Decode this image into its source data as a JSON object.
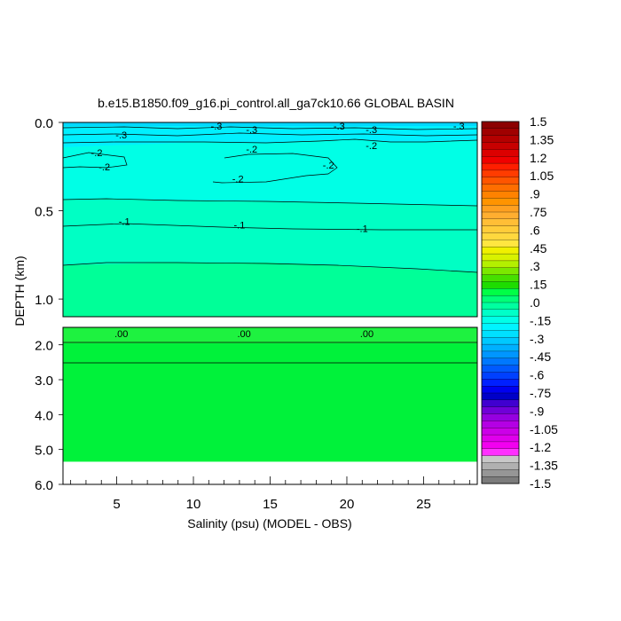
{
  "chart_data": {
    "type": "heatmap",
    "title": "b.e15.B1850.f09_g16.pi_control.all_ga7ck10.66 GLOBAL BASIN",
    "xlabel": "Salinity (psu) (MODEL - OBS)",
    "ylabel": "DEPTH (km)",
    "x_range": [
      1.5,
      28.5
    ],
    "x_ticks": [
      5,
      10,
      15,
      20,
      25
    ],
    "x_tick_labels": [
      "5",
      "10",
      "15",
      "20",
      "25"
    ],
    "upper_panel": {
      "depth_range_km": [
        0.0,
        1.1
      ],
      "y_ticks": [
        0.0,
        0.5,
        1.0
      ],
      "y_tick_labels": [
        "0.0",
        "0.5",
        "1.0"
      ]
    },
    "lower_panel": {
      "depth_range_km": [
        1.5,
        6.0
      ],
      "y_ticks": [
        2.0,
        3.0,
        4.0,
        5.0,
        6.0
      ],
      "y_tick_labels": [
        "2.0",
        "3.0",
        "4.0",
        "5.0",
        "6.0"
      ],
      "data_bottom_km": 5.35
    },
    "contour_labels": [
      {
        "text": "-.3",
        "x": 11.5,
        "depth": 0.02
      },
      {
        "text": "-.3",
        "x": 13.8,
        "depth": 0.04
      },
      {
        "text": "-.3",
        "x": 19.5,
        "depth": 0.02
      },
      {
        "text": "-.3",
        "x": 21.6,
        "depth": 0.04
      },
      {
        "text": "-.3",
        "x": 27.3,
        "depth": 0.02
      },
      {
        "text": "-.3",
        "x": 5.3,
        "depth": 0.07
      },
      {
        "text": "-.2",
        "x": 21.6,
        "depth": 0.13
      },
      {
        "text": "-.2",
        "x": 13.8,
        "depth": 0.15
      },
      {
        "text": "-.2",
        "x": 3.7,
        "depth": 0.17
      },
      {
        "text": "-.2",
        "x": 4.2,
        "depth": 0.25
      },
      {
        "text": "-.2",
        "x": 18.8,
        "depth": 0.24
      },
      {
        "text": "-.2",
        "x": 12.9,
        "depth": 0.32
      },
      {
        "text": "-.1",
        "x": 5.5,
        "depth": 0.56
      },
      {
        "text": "-.1",
        "x": 13.0,
        "depth": 0.58
      },
      {
        "text": "-.1",
        "x": 21.0,
        "depth": 0.6
      },
      {
        "text": ".00",
        "x": 5.3,
        "depth": 1.68
      },
      {
        "text": ".00",
        "x": 13.3,
        "depth": 1.68
      },
      {
        "text": ".00",
        "x": 21.3,
        "depth": 1.68
      }
    ],
    "colorbar": {
      "labels": [
        "1.5",
        "1.35",
        "1.2",
        "1.05",
        ".9",
        ".75",
        ".6",
        ".45",
        ".3",
        ".15",
        ".0",
        "-.15",
        "-.3",
        "-.45",
        "-.6",
        "-.75",
        "-.9",
        "-1.05",
        "-1.2",
        "-1.35",
        "-1.5"
      ],
      "colors": [
        "#8c0000",
        "#a00000",
        "#b40000",
        "#c80000",
        "#dc0000",
        "#f00000",
        "#ff1e00",
        "#ff3c00",
        "#ff5500",
        "#ff6e00",
        "#ff8200",
        "#ff9400",
        "#ffa020",
        "#ffae30",
        "#ffbe36",
        "#ffcc3a",
        "#ffd83e",
        "#ffe640",
        "#f0f000",
        "#d8f200",
        "#b4f000",
        "#7ce800",
        "#46e000",
        "#1edc00",
        "#00ff46",
        "#00ff78",
        "#00ffa0",
        "#00ffc8",
        "#00ffe8",
        "#00f4ff",
        "#00e0ff",
        "#00c8ff",
        "#00b0ff",
        "#0096ff",
        "#0078ff",
        "#005aff",
        "#0040ff",
        "#0020ff",
        "#0000f0",
        "#0000c8",
        "#4000d0",
        "#7000d8",
        "#9600e0",
        "#b400e4",
        "#cc00e8",
        "#e000ec",
        "#f200f0",
        "#ff30ff",
        "#c8c8c8",
        "#b0b0b0",
        "#969696",
        "#7c7c7c"
      ]
    },
    "field_colors": {
      "near_surface_minus_0_3": "#00f0ff",
      "range_minus_0_2": "#00ffe6",
      "range_minus_0_1": "#00ffc4",
      "range_0": "#00ff98",
      "deep_zero": "#00f23a"
    }
  }
}
